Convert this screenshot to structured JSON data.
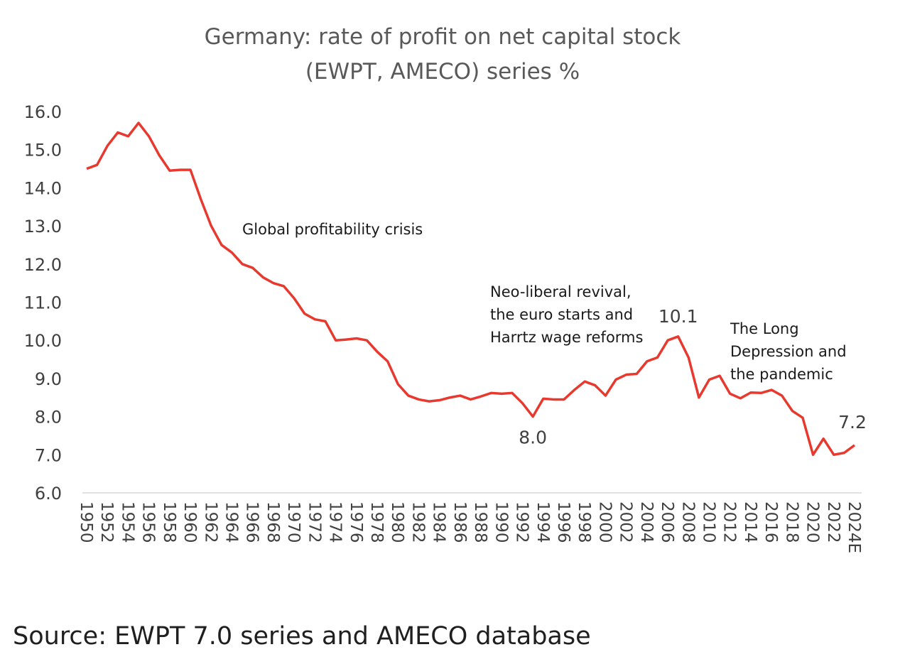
{
  "title_lines": [
    "Germany: rate of profit on net capital stock",
    "(EWPT, AMECO) series %"
  ],
  "source": "Source: EWPT 7.0 series and AMECO database",
  "colors": {
    "line": "#e8392f",
    "axis": "#d9d9d9",
    "text": "#404040",
    "title": "#595959"
  },
  "chart_data": {
    "type": "line",
    "title": "Germany: rate of profit on net capital stock (EWPT, AMECO) series %",
    "xlabel": "",
    "ylabel": "",
    "ylim": [
      6.0,
      16.0
    ],
    "yticks": [
      "6.0",
      "7.0",
      "8.0",
      "9.0",
      "10.0",
      "11.0",
      "12.0",
      "13.0",
      "14.0",
      "15.0",
      "16.0"
    ],
    "grid": false,
    "legend": "none",
    "x": [
      "1950",
      "1951",
      "1952",
      "1953",
      "1954",
      "1955",
      "1956",
      "1957",
      "1958",
      "1959",
      "1960",
      "1961",
      "1962",
      "1963",
      "1964",
      "1965",
      "1966",
      "1967",
      "1968",
      "1969",
      "1970",
      "1971",
      "1972",
      "1973",
      "1974",
      "1975",
      "1976",
      "1977",
      "1978",
      "1979",
      "1980",
      "1981",
      "1982",
      "1983",
      "1984",
      "1985",
      "1986",
      "1987",
      "1988",
      "1989",
      "1990",
      "1991",
      "1992",
      "1993",
      "1994",
      "1995",
      "1996",
      "1997",
      "1998",
      "1999",
      "2000",
      "2001",
      "2002",
      "2003",
      "2004",
      "2005",
      "2006",
      "2007",
      "2008",
      "2009",
      "2010",
      "2011",
      "2012",
      "2013",
      "2014",
      "2015",
      "2016",
      "2017",
      "2018",
      "2019",
      "2020",
      "2021",
      "2022",
      "2023",
      "2024E"
    ],
    "xtick_labels": [
      "1950",
      "1952",
      "1954",
      "1956",
      "1958",
      "1960",
      "1962",
      "1964",
      "1966",
      "1968",
      "1970",
      "1972",
      "1974",
      "1976",
      "1978",
      "1980",
      "1982",
      "1984",
      "1986",
      "1988",
      "1990",
      "1992",
      "1994",
      "1996",
      "1998",
      "2000",
      "2002",
      "2004",
      "2006",
      "2008",
      "2010",
      "2012",
      "2014",
      "2016",
      "2018",
      "2020",
      "2022",
      "2024E"
    ],
    "series": [
      {
        "values": [
          14.5,
          14.6,
          15.1,
          15.45,
          15.35,
          15.7,
          15.35,
          14.85,
          14.45,
          14.47,
          14.47,
          13.7,
          13.0,
          12.5,
          12.3,
          12.0,
          11.9,
          11.65,
          11.5,
          11.42,
          11.1,
          10.7,
          10.55,
          10.5,
          10.0,
          10.02,
          10.05,
          10.0,
          9.7,
          9.45,
          8.85,
          8.55,
          8.45,
          8.4,
          8.43,
          8.5,
          8.55,
          8.45,
          8.53,
          8.62,
          8.6,
          8.62,
          8.35,
          8.0,
          8.47,
          8.45,
          8.45,
          8.7,
          8.92,
          8.82,
          8.55,
          8.97,
          9.1,
          9.12,
          9.45,
          9.55,
          10.0,
          10.1,
          9.55,
          8.5,
          8.97,
          9.07,
          8.6,
          8.48,
          8.63,
          8.62,
          8.7,
          8.55,
          8.15,
          7.97,
          7.0,
          7.42,
          7.0,
          7.05,
          7.25
        ]
      }
    ],
    "point_labels": [
      {
        "x": "1993",
        "text": "8.0"
      },
      {
        "x": "2007",
        "text": "10.1"
      },
      {
        "x": "2024E",
        "text": "7.2"
      }
    ],
    "annotations": [
      {
        "lines": [
          "Global profitability crisis"
        ]
      },
      {
        "lines": [
          "Neo-liberal revival,",
          "the euro starts and",
          "Harrtz wage reforms"
        ]
      },
      {
        "lines": [
          "The Long",
          "Depression and",
          "the pandemic"
        ]
      }
    ]
  }
}
